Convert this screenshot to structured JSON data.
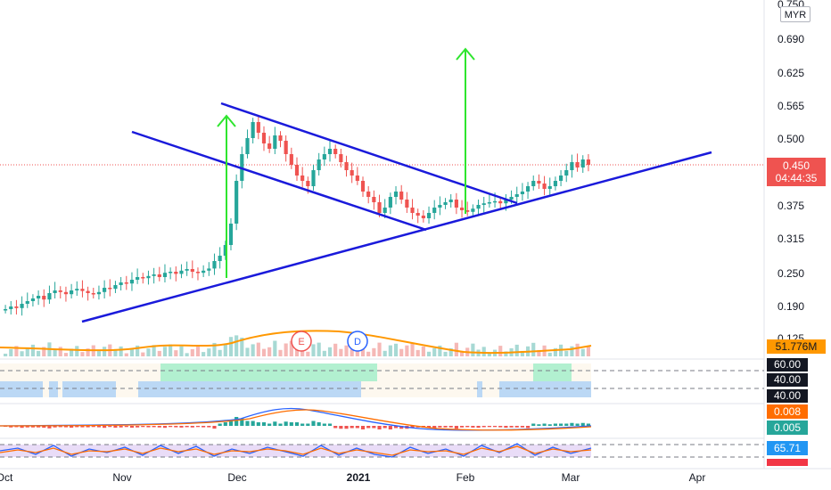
{
  "currency": "MYR",
  "chart_data": {
    "type": "candlestick",
    "ylim": [
      0.13,
      0.75
    ],
    "price_ticks": [
      "0.750",
      "0.690",
      "0.625",
      "0.565",
      "0.500",
      "0.450",
      "0.375",
      "0.315",
      "0.250",
      "0.190",
      "0.125"
    ],
    "x_ticks": [
      "Oct",
      "Nov",
      "Dec",
      "2021",
      "Feb",
      "Mar",
      "Apr"
    ],
    "last_price": "0.450",
    "countdown": "04:44:35",
    "volume_ma": "51.776M",
    "event_markers": [
      "E",
      "D"
    ],
    "indicator_levels": [
      "60.00",
      "40.00",
      "40.00"
    ],
    "macd_values": [
      "0.008",
      "0.005"
    ],
    "stoch_value": "65.71",
    "price_series": [
      0.18,
      0.185,
      0.182,
      0.19,
      0.195,
      0.2,
      0.205,
      0.198,
      0.21,
      0.215,
      0.212,
      0.208,
      0.215,
      0.218,
      0.214,
      0.21,
      0.208,
      0.212,
      0.22,
      0.218,
      0.225,
      0.23,
      0.228,
      0.235,
      0.24,
      0.238,
      0.242,
      0.245,
      0.24,
      0.248,
      0.25,
      0.246,
      0.252,
      0.255,
      0.25,
      0.248,
      0.252,
      0.256,
      0.27,
      0.28,
      0.3,
      0.34,
      0.42,
      0.47,
      0.5,
      0.53,
      0.51,
      0.49,
      0.48,
      0.505,
      0.495,
      0.47,
      0.45,
      0.43,
      0.42,
      0.41,
      0.44,
      0.46,
      0.47,
      0.48,
      0.47,
      0.455,
      0.44,
      0.43,
      0.42,
      0.4,
      0.39,
      0.38,
      0.36,
      0.37,
      0.39,
      0.4,
      0.385,
      0.37,
      0.36,
      0.355,
      0.35,
      0.36,
      0.37,
      0.375,
      0.38,
      0.385,
      0.37,
      0.365,
      0.362,
      0.368,
      0.375,
      0.378,
      0.38,
      0.382,
      0.378,
      0.385,
      0.39,
      0.395,
      0.4,
      0.41,
      0.42,
      0.415,
      0.405,
      0.41,
      0.42,
      0.43,
      0.44,
      0.455,
      0.445,
      0.46,
      0.45
    ],
    "trendlines": [
      {
        "name": "upper-channel",
        "from": [
          "Oct",
          "0.515"
        ],
        "to": [
          "Feb",
          "0.390"
        ]
      },
      {
        "name": "lower-channel",
        "from": [
          "Oct",
          "0.415"
        ],
        "to": [
          "Feb",
          "0.330"
        ]
      },
      {
        "name": "support",
        "from": [
          "Oct",
          "0.170"
        ],
        "to": [
          "Apr",
          "0.460"
        ]
      }
    ]
  }
}
